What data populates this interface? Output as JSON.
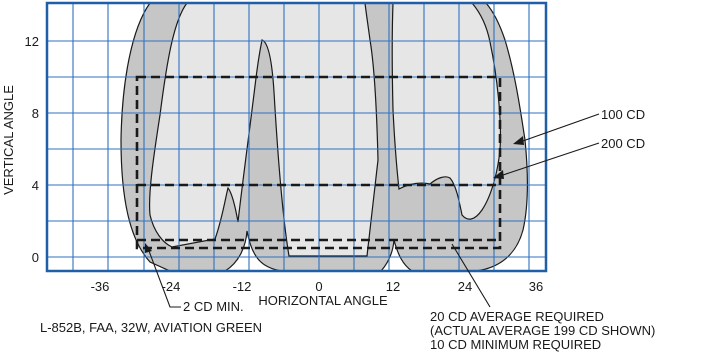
{
  "axes": {
    "x_label": "HORIZONTAL ANGLE",
    "y_label": "VERTICAL ANGLE",
    "x_ticks": [
      "-36",
      "-24",
      "-12",
      "0",
      "12",
      "24",
      "36"
    ],
    "y_ticks": [
      "12",
      "8",
      "4",
      "0"
    ],
    "x_range": [
      -45,
      45
    ],
    "y_range": [
      -0.8,
      14
    ],
    "x_gridlines": [
      -42,
      -36,
      -30,
      -24,
      -18,
      -12,
      -6,
      0,
      6,
      12,
      18,
      24,
      30,
      36,
      42
    ],
    "y_gridlines": [
      0,
      2,
      4,
      6,
      8,
      10,
      12
    ]
  },
  "callouts": {
    "outer_contour": "100 CD",
    "inner_contour": "200 CD",
    "min_box": "2 CD MIN.",
    "average_line1": "20 CD AVERAGE REQUIRED",
    "average_line2": "(ACTUAL AVERAGE 199 CD SHOWN)",
    "average_line3": "10 CD MINIMUM REQUIRED"
  },
  "caption": "L-852B, FAA, 32W, AVIATION GREEN",
  "colors": {
    "frame": "#1f5fa8",
    "grid": "#2f73c0",
    "outer_fill": "#c6c6c6",
    "inner_fill": "#e6e6e6",
    "ink": "#1a1a1a"
  }
}
